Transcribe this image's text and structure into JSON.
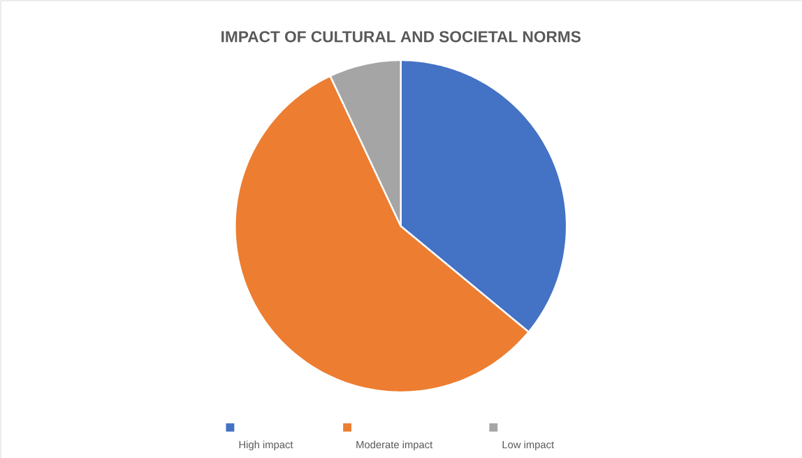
{
  "chart_data": {
    "type": "pie",
    "title": "IMPACT OF CULTURAL AND SOCIETAL NORMS",
    "categories": [
      "High impact",
      "Moderate impact",
      "Low impact"
    ],
    "values": [
      36,
      57,
      7
    ],
    "colors": [
      "#4472c4",
      "#ed7d31",
      "#a5a5a5"
    ],
    "legend": "bottom"
  }
}
